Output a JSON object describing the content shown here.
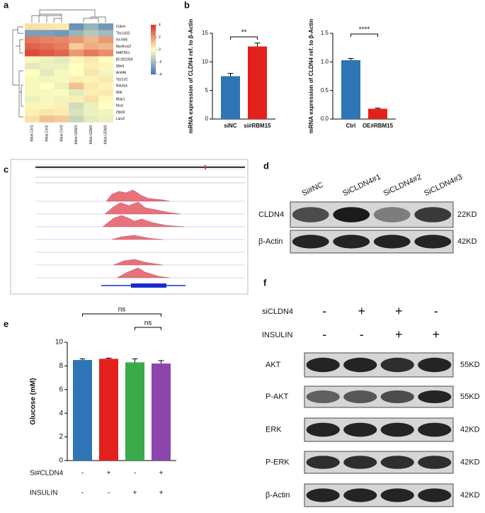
{
  "panel_labels": [
    "a",
    "b",
    "c",
    "d",
    "e",
    "f"
  ],
  "chart_data": [
    {
      "type": "heatmap",
      "rows": [
        "Cldn4",
        "Tbc1d32",
        "mt-Nd5",
        "Rps8-ps2",
        "MAP2K1",
        "BC002059",
        "Slfn9",
        "Arid4b",
        "Ypz1d1",
        "Ndufa4",
        "Nllb",
        "Bbip1",
        "Mucl",
        "Zfp60",
        "Lars2"
      ],
      "columns": [
        "Mtok-Ctrl1",
        "Mtok-Ctrl2",
        "Mtok-Ctrl3",
        "Mtok-GDM1",
        "Mtok-GDM2",
        "Mtok-GDM3"
      ],
      "values": [
        [
          0.6,
          0.5,
          0.4,
          -3.2,
          -2.2,
          -3.0
        ],
        [
          -2.8,
          -2.8,
          -3.0,
          -2.2,
          -1.6,
          -2.0
        ],
        [
          2.6,
          2.4,
          2.3,
          2.0,
          1.4,
          2.0
        ],
        [
          3.0,
          2.8,
          2.5,
          1.0,
          1.6,
          1.4
        ],
        [
          3.5,
          3.2,
          3.0,
          2.0,
          2.6,
          2.2
        ],
        [
          -0.2,
          -0.4,
          -0.6,
          0.2,
          0.4,
          0.0
        ],
        [
          -0.6,
          -0.4,
          -0.4,
          0.0,
          0.3,
          0.2
        ],
        [
          0.0,
          -0.6,
          -0.2,
          0.0,
          0.5,
          -0.3
        ],
        [
          -0.2,
          -0.3,
          -0.2,
          0.3,
          0.2,
          0.4
        ],
        [
          -0.2,
          0.0,
          -0.4,
          1.2,
          0.4,
          0.2
        ],
        [
          0.2,
          -0.2,
          -0.1,
          -0.6,
          0.3,
          0.4
        ],
        [
          -0.4,
          -0.2,
          -0.3,
          0.3,
          0.6,
          0.1
        ],
        [
          0.2,
          -0.2,
          0.3,
          -1.0,
          -0.4,
          0.0
        ],
        [
          0.3,
          0.5,
          0.4,
          -0.8,
          -0.4,
          -0.3
        ],
        [
          0.6,
          1.2,
          1.0,
          -1.2,
          -0.6,
          -0.4
        ]
      ],
      "zlim": [
        -4,
        4
      ],
      "zticks": [
        4,
        2,
        0,
        -2,
        -4
      ],
      "colors": [
        "#4575b4",
        "#ffffbf",
        "#d73027"
      ]
    },
    {
      "type": "bar",
      "ylabel": "mRNA expression of CLDN4 ref. to β-Actin",
      "categories": [
        "siNC",
        "si#RBM15"
      ],
      "values": [
        7.5,
        12.7
      ],
      "errors": [
        0.5,
        0.6
      ],
      "colors": [
        "#2e75b6",
        "#e3211c"
      ],
      "ylim": [
        0,
        15
      ],
      "yticks": [
        0,
        5,
        10,
        15
      ],
      "annotations": [
        "**"
      ]
    },
    {
      "type": "bar",
      "ylabel": "mRNA expression of CLDN4 ref. to β-Actin",
      "categories": [
        "Ctrl",
        "OE#RBM15"
      ],
      "values": [
        1.03,
        0.18
      ],
      "errors": [
        0.03,
        0.01
      ],
      "colors": [
        "#2e75b6",
        "#e3211c"
      ],
      "ylim": [
        0,
        1.5
      ],
      "yticks": [
        {
          "value": 0,
          "label": "0.0"
        },
        0.5,
        {
          "value": 1,
          "label": "1.0"
        },
        1.5
      ],
      "annotations": [
        "****"
      ]
    },
    {
      "type": "bar",
      "ylabel": "Glucose (mM)",
      "values": [
        8.5,
        8.6,
        8.3,
        8.2
      ],
      "errors": [
        0.1,
        0.05,
        0.3,
        0.25
      ],
      "colors": [
        "#2e75b6",
        "#e3211c",
        "#3aaa4a",
        "#8e44ad"
      ],
      "ylim": [
        0,
        10
      ],
      "yticks": [
        0,
        2,
        4,
        6,
        8,
        10
      ],
      "annotations": [
        "ns",
        "ns"
      ],
      "treatments": [
        {
          "name": "Si#CLDN4",
          "signs": [
            "-",
            "+",
            "-",
            "+"
          ]
        },
        {
          "name": "INSULIN",
          "signs": [
            "-",
            "-",
            "+",
            "+"
          ]
        }
      ]
    }
  ],
  "blot_d": {
    "lanes": [
      "Si#NC",
      "SiCLDN4#1",
      "SiCLDN4#2",
      "SiCLDN4#3"
    ],
    "rows": [
      {
        "name": "CLDN4",
        "size": "22KD"
      },
      {
        "name": "β-Actin",
        "size": "42KD"
      }
    ]
  },
  "blot_f": {
    "treatments": [
      {
        "name": "siCLDN4",
        "signs": [
          "-",
          "+",
          "+",
          "-"
        ]
      },
      {
        "name": "INSULIN",
        "signs": [
          "-",
          "-",
          "+",
          "+"
        ]
      }
    ],
    "rows": [
      {
        "name": "AKT",
        "size": "55KD"
      },
      {
        "name": "P-AKT",
        "size": "55KD"
      },
      {
        "name": "ERK",
        "size": "42KD"
      },
      {
        "name": "P-ERK",
        "size": "42KD"
      },
      {
        "name": "β-Actin",
        "size": "42KD"
      }
    ]
  }
}
